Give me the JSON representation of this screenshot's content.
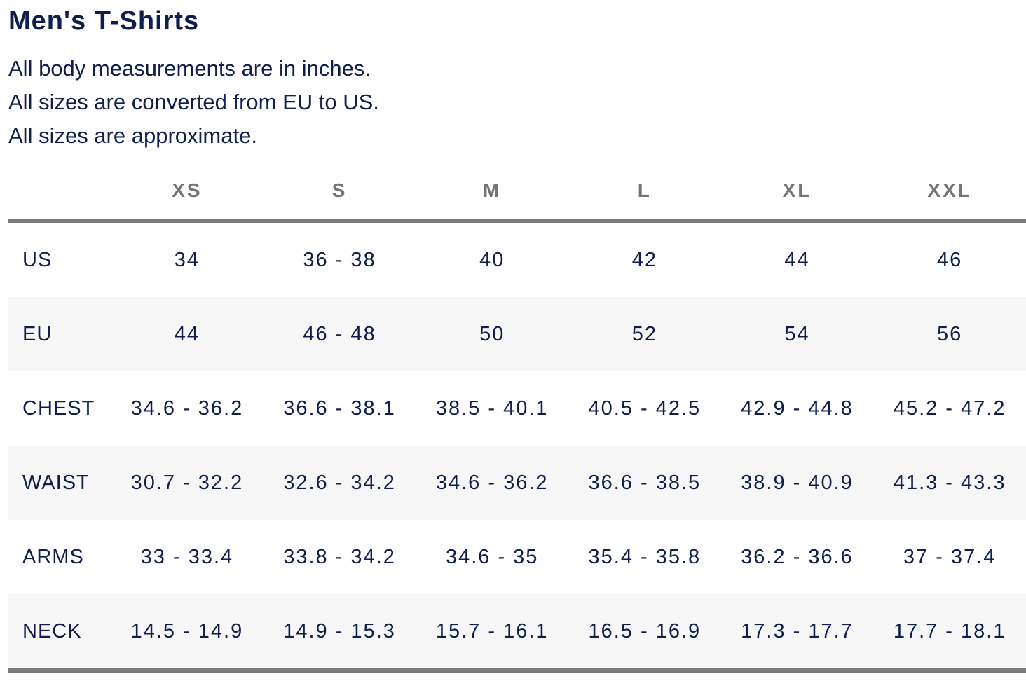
{
  "page": {
    "title": "Men's T-Shirts",
    "notes": [
      "All body measurements are in inches.",
      "All sizes are converted from EU to US.",
      "All sizes are approximate."
    ]
  },
  "size_table": {
    "columns": [
      "XS",
      "S",
      "M",
      "L",
      "XL",
      "XXL"
    ],
    "rows": [
      {
        "label": "US",
        "values": [
          "34",
          "36 - 38",
          "40",
          "42",
          "44",
          "46"
        ]
      },
      {
        "label": "EU",
        "values": [
          "44",
          "46 - 48",
          "50",
          "52",
          "54",
          "56"
        ]
      },
      {
        "label": "CHEST",
        "values": [
          "34.6 - 36.2",
          "36.6 - 38.1",
          "38.5 - 40.1",
          "40.5 - 42.5",
          "42.9 - 44.8",
          "45.2 - 47.2"
        ]
      },
      {
        "label": "WAIST",
        "values": [
          "30.7 - 32.2",
          "32.6 - 34.2",
          "34.6 - 36.2",
          "36.6 - 38.5",
          "38.9 - 40.9",
          "41.3 - 43.3"
        ]
      },
      {
        "label": "ARMS",
        "values": [
          "33 - 33.4",
          "33.8 - 34.2",
          "34.6 - 35",
          "35.4 - 35.8",
          "36.2 - 36.6",
          "37 - 37.4"
        ]
      },
      {
        "label": "NECK",
        "values": [
          "14.5 - 14.9",
          "14.9 - 15.3",
          "15.7 - 16.1",
          "16.5 - 16.9",
          "17.3 - 17.7",
          "17.7 - 18.1"
        ]
      }
    ]
  },
  "colors": {
    "text_navy": "#0f1e4d",
    "header_gray": "#747474",
    "rule_gray": "#7a7a7a",
    "stripe": "#f7f7f7"
  }
}
